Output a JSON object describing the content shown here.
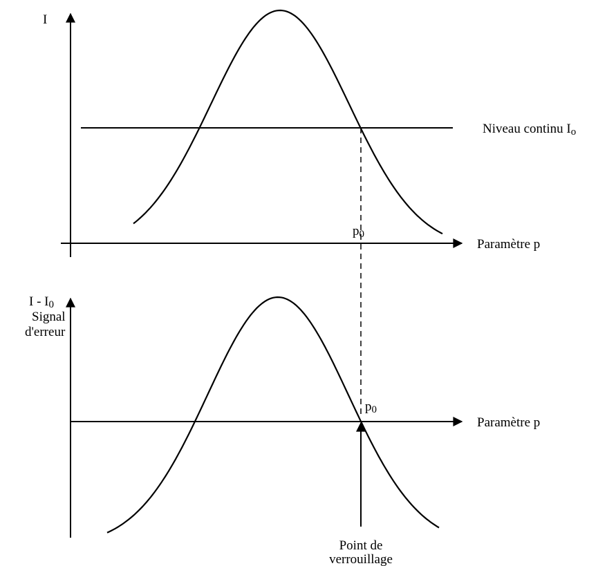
{
  "top_plot": {
    "y_axis_label": "I",
    "level_label": {
      "text": "Niveau continu I",
      "sub": "o"
    },
    "point_label": {
      "text": "p",
      "sub": "0"
    },
    "x_axis_label": "Paramètre p"
  },
  "bottom_plot": {
    "y_axis_label": {
      "text": "I - I",
      "sub": "0"
    },
    "y_axis_caption": [
      "Signal",
      "d'erreur"
    ],
    "point_label": {
      "text": "p",
      "sub": "0"
    },
    "x_axis_label": "Paramètre p",
    "lock_label": [
      "Point de",
      "verrouillage"
    ]
  }
}
